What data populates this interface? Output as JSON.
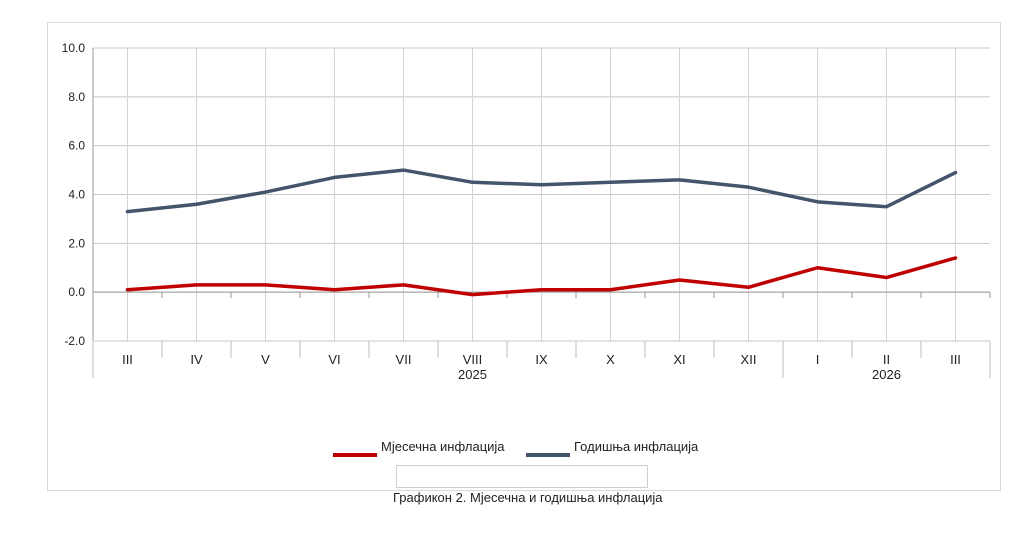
{
  "chart_data": {
    "type": "line",
    "categories": [
      "III",
      "IV",
      "V",
      "VI",
      "VII",
      "VIII",
      "IX",
      "X",
      "XI",
      "XII",
      "I",
      "II",
      "III"
    ],
    "year_labels": [
      {
        "index": 5,
        "label": "2025"
      },
      {
        "index": 11,
        "label": "2026"
      }
    ],
    "y_ticks": [
      "10.0",
      "8.0",
      "6.0",
      "4.0",
      "2.0",
      "0.0",
      "-2.0"
    ],
    "ylim": [
      -2,
      10
    ],
    "grid": true,
    "legend_position": "bottom-center",
    "series": [
      {
        "name": "Мјесечна инфлација",
        "color": "#c00000",
        "values": [
          0.1,
          0.3,
          0.3,
          0.1,
          0.3,
          -0.1,
          0.1,
          0.1,
          0.5,
          0.2,
          1.0,
          0.6,
          1.4
        ]
      },
      {
        "name": "Годишња инфлација",
        "color": "#44546a",
        "values": [
          3.3,
          3.6,
          4.1,
          4.7,
          5.0,
          4.5,
          4.4,
          4.5,
          4.6,
          4.3,
          3.7,
          3.5,
          4.9
        ]
      }
    ]
  },
  "caption": "Графикон 2. Мјесечна и годишња инфлација"
}
